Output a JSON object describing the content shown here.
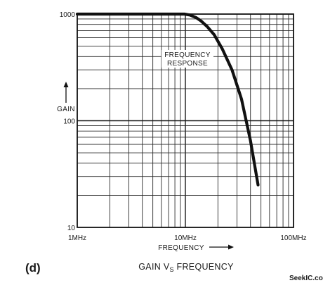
{
  "panel_label": "(d)",
  "caption": {
    "prefix": "GAIN V",
    "subscript": "S",
    "suffix": " FREQUENCY"
  },
  "watermark": "SeekIC.com",
  "chart_data": {
    "type": "line",
    "title": "",
    "xlabel": "FREQUENCY",
    "ylabel": "GAIN",
    "x_scale": "log",
    "y_scale": "log",
    "xlim": [
      1,
      100
    ],
    "ylim": [
      10,
      1000
    ],
    "x_unit": "MHz",
    "x_ticks": [
      {
        "value": 1,
        "label": "1MHz"
      },
      {
        "value": 10,
        "label": "10MHz"
      },
      {
        "value": 100,
        "label": "100MHz"
      }
    ],
    "y_ticks": [
      {
        "value": 1000,
        "label": "1000"
      },
      {
        "value": 100,
        "label": "100"
      },
      {
        "value": 10,
        "label": "10"
      }
    ],
    "grid": true,
    "annotation": [
      "FREQUENCY",
      "RESPONSE"
    ],
    "series": [
      {
        "x": [
          1,
          2,
          5,
          9.8,
          11,
          12.5,
          14,
          16,
          18.5,
          22,
          27,
          33,
          40,
          47
        ],
        "y": [
          1000,
          1000,
          1000,
          1000,
          980,
          930,
          860,
          760,
          640,
          470,
          300,
          160,
          65,
          25
        ]
      }
    ]
  }
}
